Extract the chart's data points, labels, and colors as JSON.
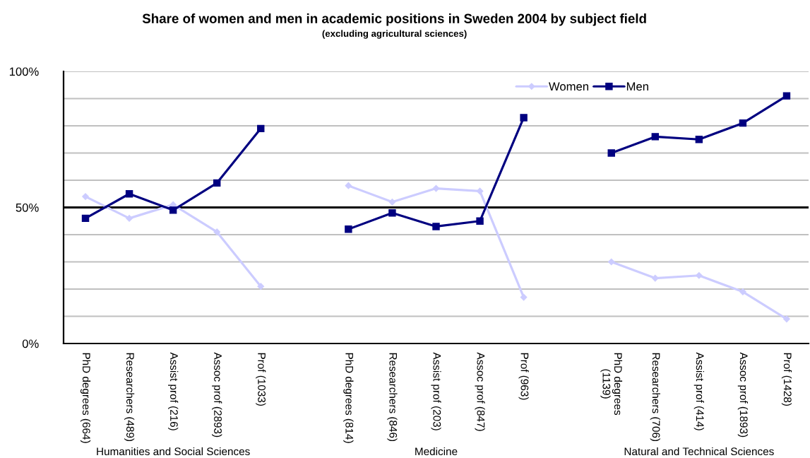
{
  "chart_data": {
    "type": "line",
    "title": "Share of women and men in academic positions in Sweden 2004 by subject field",
    "subtitle": "(excluding agricultural sciences)",
    "categories": [
      "PhD degrees (664)",
      "Researchers (489)",
      "Assist prof (216)",
      "Assoc prof (2893)",
      "Prof (1033)",
      null,
      "PhD degrees (814)",
      "Researchers (846)",
      "Assist prof (203)",
      "Assoc prof (847)",
      "Prof (963)",
      null,
      "PhD degrees (1139)",
      "Researchers (706)",
      "Assist prof (414)",
      "Assoc prof (1893)",
      "Prof (1428)"
    ],
    "series": [
      {
        "name": "Women",
        "color": "#ccccff",
        "marker": "diamond",
        "values": [
          54,
          46,
          51,
          41,
          21,
          null,
          58,
          52,
          57,
          56,
          17,
          null,
          30,
          24,
          25,
          19,
          9
        ]
      },
      {
        "name": "Men",
        "color": "#000080",
        "marker": "square",
        "values": [
          46,
          55,
          49,
          59,
          79,
          null,
          42,
          48,
          43,
          45,
          83,
          null,
          70,
          76,
          75,
          81,
          91
        ]
      }
    ],
    "ylim": [
      0,
      100
    ],
    "yticks": [
      {
        "value": 0,
        "label": "0%"
      },
      {
        "value": 10,
        "label": null
      },
      {
        "value": 20,
        "label": null
      },
      {
        "value": 30,
        "label": null
      },
      {
        "value": 40,
        "label": null
      },
      {
        "value": 50,
        "label": "50%"
      },
      {
        "value": 60,
        "label": null
      },
      {
        "value": 70,
        "label": null
      },
      {
        "value": 80,
        "label": null
      },
      {
        "value": 90,
        "label": null
      },
      {
        "value": 100,
        "label": "100%"
      }
    ],
    "grid": "y",
    "legend": "top right",
    "line_style": "solid",
    "ref_lines": [
      {
        "axis": "y",
        "value": 50,
        "color": "#000000"
      }
    ],
    "annotations": [
      "Humanities and Social Sciences",
      "Medicine",
      "Natural and Technical Sciences"
    ]
  }
}
